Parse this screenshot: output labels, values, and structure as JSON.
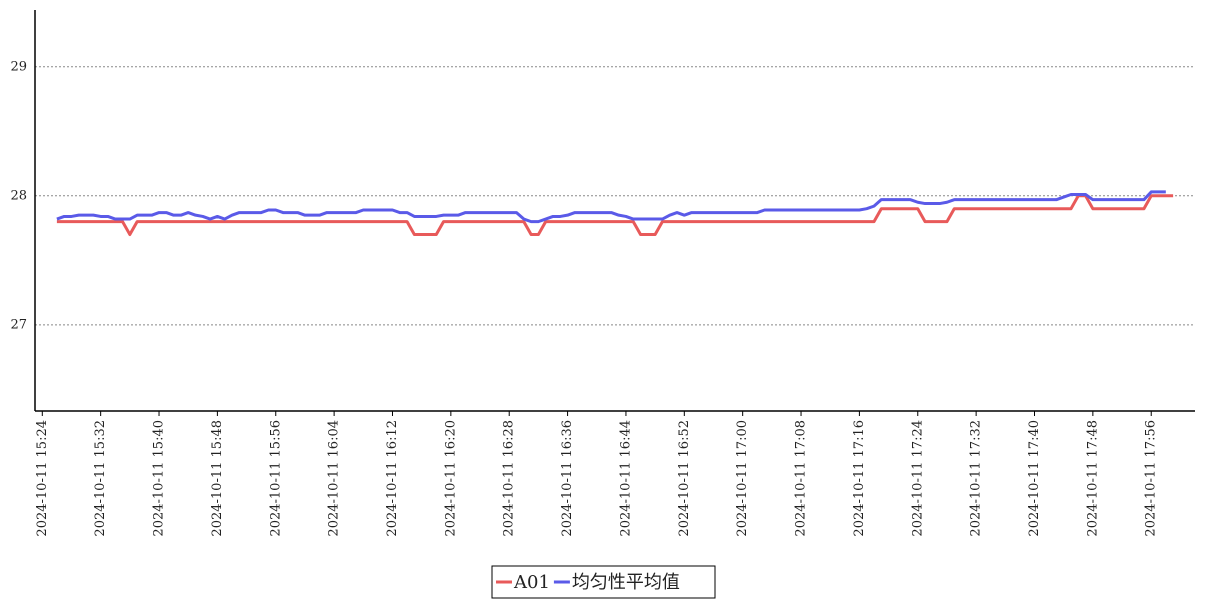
{
  "chart_data": {
    "type": "line",
    "x": [
      "2024-10-11 15:26",
      "2024-10-11 15:27",
      "2024-10-11 15:28",
      "2024-10-11 15:29",
      "2024-10-11 15:30",
      "2024-10-11 15:31",
      "2024-10-11 15:32",
      "2024-10-11 15:33",
      "2024-10-11 15:34",
      "2024-10-11 15:35",
      "2024-10-11 15:36",
      "2024-10-11 15:37",
      "2024-10-11 15:38",
      "2024-10-11 15:39",
      "2024-10-11 15:40",
      "2024-10-11 15:41",
      "2024-10-11 15:42",
      "2024-10-11 15:43",
      "2024-10-11 15:44",
      "2024-10-11 15:45",
      "2024-10-11 15:46",
      "2024-10-11 15:47",
      "2024-10-11 15:48",
      "2024-10-11 15:49",
      "2024-10-11 15:50",
      "2024-10-11 15:51",
      "2024-10-11 15:52",
      "2024-10-11 15:53",
      "2024-10-11 15:54",
      "2024-10-11 15:55",
      "2024-10-11 15:56",
      "2024-10-11 15:57",
      "2024-10-11 15:58",
      "2024-10-11 15:59",
      "2024-10-11 16:00",
      "2024-10-11 16:01",
      "2024-10-11 16:02",
      "2024-10-11 16:03",
      "2024-10-11 16:04",
      "2024-10-11 16:05",
      "2024-10-11 16:06",
      "2024-10-11 16:07",
      "2024-10-11 16:08",
      "2024-10-11 16:09",
      "2024-10-11 16:10",
      "2024-10-11 16:11",
      "2024-10-11 16:12",
      "2024-10-11 16:13",
      "2024-10-11 16:14",
      "2024-10-11 16:15",
      "2024-10-11 16:16",
      "2024-10-11 16:17",
      "2024-10-11 16:18",
      "2024-10-11 16:19",
      "2024-10-11 16:20",
      "2024-10-11 16:21",
      "2024-10-11 16:22",
      "2024-10-11 16:23",
      "2024-10-11 16:24",
      "2024-10-11 16:25",
      "2024-10-11 16:26",
      "2024-10-11 16:27",
      "2024-10-11 16:28",
      "2024-10-11 16:29",
      "2024-10-11 16:30",
      "2024-10-11 16:31",
      "2024-10-11 16:32",
      "2024-10-11 16:33",
      "2024-10-11 16:34",
      "2024-10-11 16:35",
      "2024-10-11 16:36",
      "2024-10-11 16:37",
      "2024-10-11 16:38",
      "2024-10-11 16:39",
      "2024-10-11 16:40",
      "2024-10-11 16:41",
      "2024-10-11 16:42",
      "2024-10-11 16:43",
      "2024-10-11 16:44",
      "2024-10-11 16:45",
      "2024-10-11 16:46",
      "2024-10-11 16:47",
      "2024-10-11 16:48",
      "2024-10-11 16:49",
      "2024-10-11 16:50",
      "2024-10-11 16:51",
      "2024-10-11 16:52",
      "2024-10-11 16:53",
      "2024-10-11 16:54",
      "2024-10-11 16:55",
      "2024-10-11 16:56",
      "2024-10-11 16:57",
      "2024-10-11 16:58",
      "2024-10-11 16:59",
      "2024-10-11 17:00",
      "2024-10-11 17:01",
      "2024-10-11 17:02",
      "2024-10-11 17:03",
      "2024-10-11 17:04",
      "2024-10-11 17:05",
      "2024-10-11 17:06",
      "2024-10-11 17:07",
      "2024-10-11 17:08",
      "2024-10-11 17:09",
      "2024-10-11 17:10",
      "2024-10-11 17:11",
      "2024-10-11 17:12",
      "2024-10-11 17:13",
      "2024-10-11 17:14",
      "2024-10-11 17:15",
      "2024-10-11 17:16",
      "2024-10-11 17:17",
      "2024-10-11 17:18",
      "2024-10-11 17:19",
      "2024-10-11 17:20",
      "2024-10-11 17:21",
      "2024-10-11 17:22",
      "2024-10-11 17:23",
      "2024-10-11 17:24",
      "2024-10-11 17:25",
      "2024-10-11 17:26",
      "2024-10-11 17:27",
      "2024-10-11 17:28",
      "2024-10-11 17:29",
      "2024-10-11 17:30",
      "2024-10-11 17:31",
      "2024-10-11 17:32",
      "2024-10-11 17:33",
      "2024-10-11 17:34",
      "2024-10-11 17:35",
      "2024-10-11 17:36",
      "2024-10-11 17:37",
      "2024-10-11 17:38",
      "2024-10-11 17:39",
      "2024-10-11 17:40",
      "2024-10-11 17:41",
      "2024-10-11 17:42",
      "2024-10-11 17:43",
      "2024-10-11 17:44",
      "2024-10-11 17:45",
      "2024-10-11 17:46",
      "2024-10-11 17:47",
      "2024-10-11 17:48",
      "2024-10-11 17:49",
      "2024-10-11 17:50",
      "2024-10-11 17:51",
      "2024-10-11 17:52",
      "2024-10-11 17:53",
      "2024-10-11 17:54",
      "2024-10-11 17:55",
      "2024-10-11 17:56",
      "2024-10-11 17:57",
      "2024-10-11 17:58",
      "2024-10-11 17:59"
    ],
    "series": [
      {
        "name": "A01",
        "color": "#e85a5a",
        "values": [
          27.8,
          27.8,
          27.8,
          27.8,
          27.8,
          27.8,
          27.8,
          27.8,
          27.8,
          27.8,
          27.7,
          27.8,
          27.8,
          27.8,
          27.8,
          27.8,
          27.8,
          27.8,
          27.8,
          27.8,
          27.8,
          27.8,
          27.8,
          27.8,
          27.8,
          27.8,
          27.8,
          27.8,
          27.8,
          27.8,
          27.8,
          27.8,
          27.8,
          27.8,
          27.8,
          27.8,
          27.8,
          27.8,
          27.8,
          27.8,
          27.8,
          27.8,
          27.8,
          27.8,
          27.8,
          27.8,
          27.8,
          27.8,
          27.8,
          27.7,
          27.7,
          27.7,
          27.7,
          27.8,
          27.8,
          27.8,
          27.8,
          27.8,
          27.8,
          27.8,
          27.8,
          27.8,
          27.8,
          27.8,
          27.8,
          27.7,
          27.7,
          27.8,
          27.8,
          27.8,
          27.8,
          27.8,
          27.8,
          27.8,
          27.8,
          27.8,
          27.8,
          27.8,
          27.8,
          27.8,
          27.7,
          27.7,
          27.7,
          27.8,
          27.8,
          27.8,
          27.8,
          27.8,
          27.8,
          27.8,
          27.8,
          27.8,
          27.8,
          27.8,
          27.8,
          27.8,
          27.8,
          27.8,
          27.8,
          27.8,
          27.8,
          27.8,
          27.8,
          27.8,
          27.8,
          27.8,
          27.8,
          27.8,
          27.8,
          27.8,
          27.8,
          27.8,
          27.8,
          27.9,
          27.9,
          27.9,
          27.9,
          27.9,
          27.9,
          27.8,
          27.8,
          27.8,
          27.8,
          27.9,
          27.9,
          27.9,
          27.9,
          27.9,
          27.9,
          27.9,
          27.9,
          27.9,
          27.9,
          27.9,
          27.9,
          27.9,
          27.9,
          27.9,
          27.9,
          27.9,
          28.0,
          28.0,
          27.9,
          27.9,
          27.9,
          27.9,
          27.9,
          27.9,
          27.9,
          27.9,
          28.0,
          28.0,
          28.0,
          28.0
        ]
      },
      {
        "name": "均匀性平均值",
        "color": "#5a5ae8",
        "values": [
          27.82,
          27.84,
          27.84,
          27.85,
          27.85,
          27.85,
          27.84,
          27.84,
          27.82,
          27.82,
          27.82,
          27.85,
          27.85,
          27.85,
          27.87,
          27.87,
          27.85,
          27.85,
          27.87,
          27.85,
          27.84,
          27.82,
          27.84,
          27.82,
          27.85,
          27.87,
          27.87,
          27.87,
          27.87,
          27.89,
          27.89,
          27.87,
          27.87,
          27.87,
          27.85,
          27.85,
          27.85,
          27.87,
          27.87,
          27.87,
          27.87,
          27.87,
          27.89,
          27.89,
          27.89,
          27.89,
          27.89,
          27.87,
          27.87,
          27.84,
          27.84,
          27.84,
          27.84,
          27.85,
          27.85,
          27.85,
          27.87,
          27.87,
          27.87,
          27.87,
          27.87,
          27.87,
          27.87,
          27.87,
          27.82,
          27.8,
          27.8,
          27.82,
          27.84,
          27.84,
          27.85,
          27.87,
          27.87,
          27.87,
          27.87,
          27.87,
          27.87,
          27.85,
          27.84,
          27.82,
          27.82,
          27.82,
          27.82,
          27.82,
          27.85,
          27.87,
          27.85,
          27.87,
          27.87,
          27.87,
          27.87,
          27.87,
          27.87,
          27.87,
          27.87,
          27.87,
          27.87,
          27.89,
          27.89,
          27.89,
          27.89,
          27.89,
          27.89,
          27.89,
          27.89,
          27.89,
          27.89,
          27.89,
          27.89,
          27.89,
          27.89,
          27.9,
          27.92,
          27.97,
          27.97,
          27.97,
          27.97,
          27.97,
          27.95,
          27.94,
          27.94,
          27.94,
          27.95,
          27.97,
          27.97,
          27.97,
          27.97,
          27.97,
          27.97,
          27.97,
          27.97,
          27.97,
          27.97,
          27.97,
          27.97,
          27.97,
          27.97,
          27.97,
          27.99,
          28.01,
          28.01,
          28.01,
          27.97,
          27.97,
          27.97,
          27.97,
          27.97,
          27.97,
          27.97,
          27.97,
          28.03,
          28.03,
          28.03,
          null
        ]
      }
    ],
    "xlim": [
      "2024-10-11 15:23",
      "2024-10-11 18:02"
    ],
    "xticks": [
      "2024-10-11 15:24",
      "2024-10-11 15:32",
      "2024-10-11 15:40",
      "2024-10-11 15:48",
      "2024-10-11 15:56",
      "2024-10-11 16:04",
      "2024-10-11 16:12",
      "2024-10-11 16:20",
      "2024-10-11 16:28",
      "2024-10-11 16:36",
      "2024-10-11 16:44",
      "2024-10-11 16:52",
      "2024-10-11 17:00",
      "2024-10-11 17:08",
      "2024-10-11 17:16",
      "2024-10-11 17:24",
      "2024-10-11 17:32",
      "2024-10-11 17:40",
      "2024-10-11 17:48",
      "2024-10-11 17:56"
    ],
    "ylim": [
      26.34,
      29.44
    ],
    "yticks": [
      27,
      28,
      29
    ],
    "grid": true
  }
}
